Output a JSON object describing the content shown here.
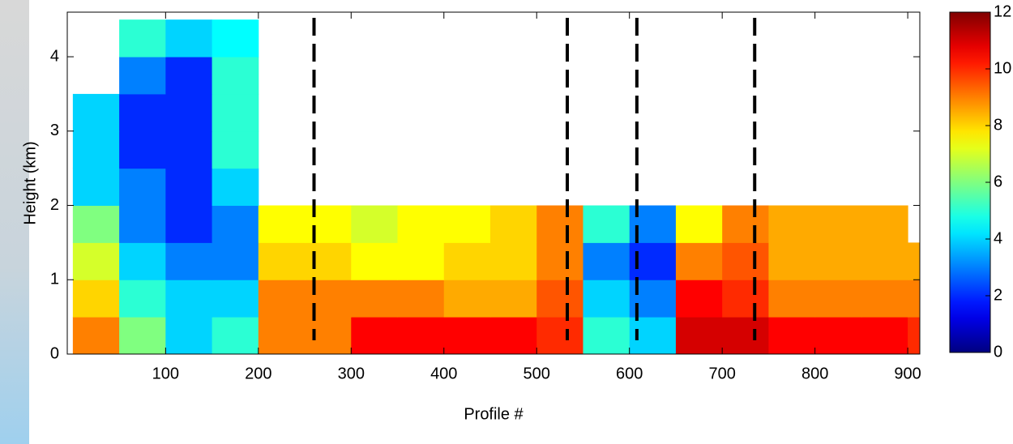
{
  "chart_data": {
    "type": "heatmap",
    "xlabel": "Profile #",
    "ylabel": "Height (km)",
    "colormap": "jet",
    "xlim": [
      -6,
      913
    ],
    "ylim": [
      0,
      4.6
    ],
    "xticks": [
      100,
      200,
      300,
      400,
      500,
      600,
      700,
      800,
      900
    ],
    "yticks": [
      0,
      1,
      2,
      3,
      4
    ],
    "clim": [
      0,
      12
    ],
    "cticks": [
      0,
      2,
      4,
      6,
      8,
      10,
      12
    ],
    "x_edges": [
      0,
      50,
      100,
      150,
      200,
      250,
      300,
      350,
      400,
      450,
      500,
      550,
      600,
      650,
      700,
      750,
      800,
      850,
      900,
      913
    ],
    "y_edges": [
      0,
      0.5,
      1,
      1.5,
      2,
      2.5,
      3,
      3.5,
      4,
      4.5
    ],
    "z": [
      [
        9,
        6,
        4,
        5,
        9,
        9,
        10.5,
        10.5,
        10.5,
        10.5,
        10,
        5,
        4,
        11,
        11,
        10.5,
        10.5,
        10.5,
        10
      ],
      [
        8,
        5,
        4,
        4,
        9,
        9,
        9,
        9,
        8.5,
        8.5,
        9.5,
        4,
        3,
        10.5,
        10,
        9,
        9,
        9,
        9
      ],
      [
        7,
        4,
        3,
        3,
        8,
        8,
        7.5,
        7.5,
        8,
        8,
        9,
        3,
        2,
        9,
        9.5,
        8.5,
        8.5,
        8.5,
        8.5
      ],
      [
        6,
        3,
        2,
        3,
        7.5,
        7.5,
        7,
        7.5,
        7.5,
        8,
        9,
        5,
        3,
        7.5,
        9,
        8.5,
        8.5,
        8.5,
        null
      ],
      [
        4,
        3,
        2,
        4,
        null,
        null,
        null,
        null,
        null,
        null,
        null,
        null,
        null,
        null,
        null,
        null,
        null,
        null,
        null
      ],
      [
        4,
        2,
        2,
        5,
        null,
        null,
        null,
        null,
        null,
        null,
        null,
        null,
        null,
        null,
        null,
        null,
        null,
        null,
        null
      ],
      [
        4,
        2,
        2,
        5,
        null,
        null,
        null,
        null,
        null,
        null,
        null,
        null,
        null,
        null,
        null,
        null,
        null,
        null,
        null
      ],
      [
        null,
        3,
        2,
        5,
        null,
        null,
        null,
        null,
        null,
        null,
        null,
        null,
        null,
        null,
        null,
        null,
        null,
        null,
        null
      ],
      [
        null,
        5,
        4,
        4.5,
        null,
        null,
        null,
        null,
        null,
        null,
        null,
        null,
        null,
        null,
        null,
        null,
        null,
        null,
        null
      ]
    ],
    "vlines": [
      260,
      533,
      608,
      735
    ]
  }
}
